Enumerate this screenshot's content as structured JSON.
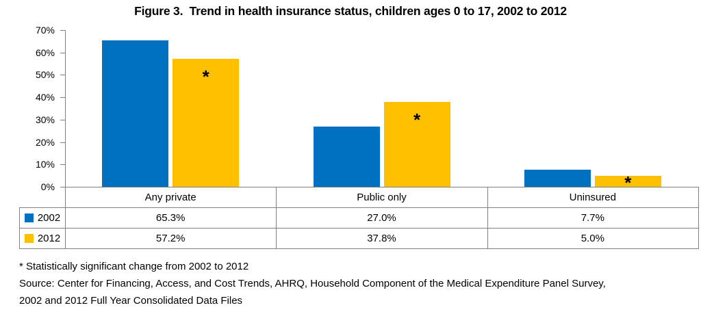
{
  "figure": {
    "title": "Figure 3.  Trend in health insurance status, children ages 0 to 17, 2002 to 2012"
  },
  "chart_data": {
    "type": "bar",
    "title": "Figure 3.  Trend in health insurance status, children ages 0 to 17, 2002 to 2012",
    "categories": [
      "Any private",
      "Public only",
      "Uninsured"
    ],
    "series": [
      {
        "name": "2002",
        "color": "#0070C0",
        "values": [
          65.3,
          27.0,
          7.7
        ],
        "labels": [
          "65.3%",
          "27.0%",
          "7.7%"
        ],
        "significant": [
          false,
          false,
          false
        ]
      },
      {
        "name": "2012",
        "color": "#FFC000",
        "values": [
          57.2,
          37.8,
          5.0
        ],
        "labels": [
          "57.2%",
          "37.8%",
          "5.0%"
        ],
        "significant": [
          true,
          true,
          true
        ]
      }
    ],
    "xlabel": "",
    "ylabel": "",
    "ylim": [
      0,
      70
    ],
    "ytick_step": 10,
    "ytick_labels": [
      "0%",
      "10%",
      "20%",
      "30%",
      "40%",
      "50%",
      "60%",
      "70%"
    ],
    "grid": false,
    "legend_position": "data-table-left",
    "data_table_shown": true,
    "significance_marker": "*"
  },
  "footnotes": {
    "line1": "* Statistically significant change from 2002 to 2012",
    "line2": "Source: Center for Financing, Access, and Cost Trends, AHRQ, Household Component of the Medical Expenditure Panel Survey,",
    "line3": "2002 and 2012 Full Year Consolidated Data Files"
  },
  "colors": {
    "series_2002": "#0070C0",
    "series_2012": "#FFC000",
    "table_border": "#808080",
    "axis": "#808080",
    "text": "#000000",
    "background": "#FFFFFF"
  }
}
